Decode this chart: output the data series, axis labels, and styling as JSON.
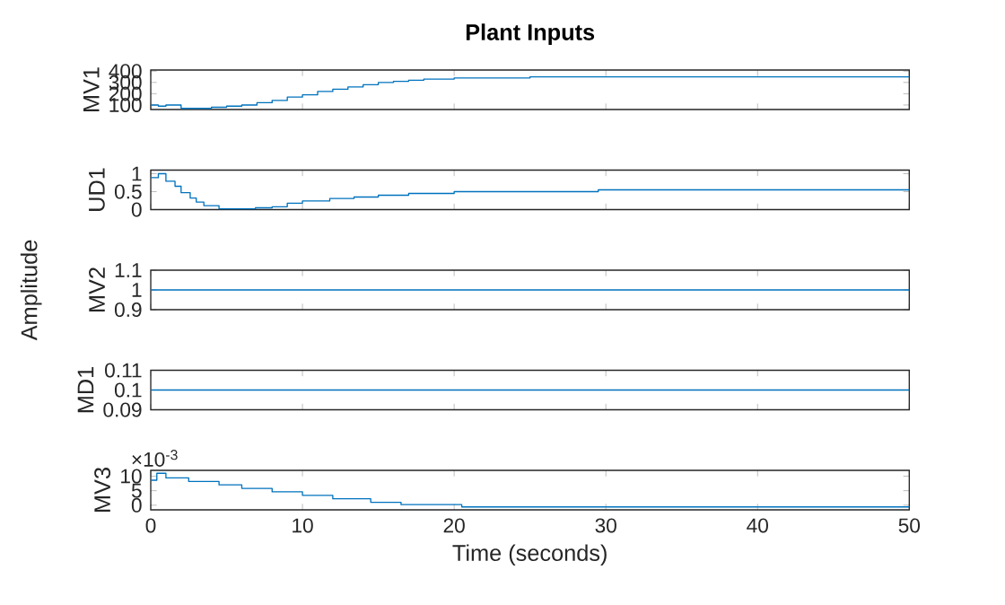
{
  "chart_data": [
    {
      "type": "step",
      "title": "Plant Inputs",
      "ylabel": "MV1",
      "color": "#0072bd",
      "tick_labels": "y",
      "x": [
        0,
        0.5,
        1,
        2,
        4,
        5,
        6,
        7,
        8,
        9,
        10,
        11,
        12,
        13,
        14,
        15,
        16,
        17,
        18,
        20,
        25,
        50
      ],
      "values": [
        100,
        90,
        100,
        70,
        80,
        90,
        100,
        120,
        140,
        170,
        190,
        220,
        240,
        260,
        280,
        300,
        310,
        320,
        330,
        340,
        350,
        350
      ],
      "xlim": [
        0,
        50
      ],
      "ylim": [
        60,
        410
      ],
      "xticks": [
        0,
        10,
        20,
        30,
        40,
        50
      ],
      "yticks": [
        100,
        200,
        300,
        400
      ]
    },
    {
      "type": "step",
      "ylabel": "UD1",
      "color": "#0072bd",
      "tick_labels": "y",
      "x": [
        0,
        0.5,
        1,
        1.6,
        2,
        2.6,
        3,
        3.5,
        4.5,
        6.9,
        8,
        9,
        10,
        11.8,
        13.4,
        15,
        17,
        20,
        29.5,
        50
      ],
      "values": [
        0.89,
        1.0,
        0.79,
        0.65,
        0.47,
        0.32,
        0.21,
        0.11,
        0.02,
        0.05,
        0.08,
        0.18,
        0.24,
        0.31,
        0.35,
        0.4,
        0.45,
        0.5,
        0.55,
        0.55
      ],
      "xlim": [
        0,
        50
      ],
      "ylim": [
        0,
        1.1
      ],
      "xticks": [
        0,
        10,
        20,
        30,
        40,
        50
      ],
      "yticks": [
        0,
        0.5,
        1
      ]
    },
    {
      "type": "step",
      "ylabel": "MV2",
      "color": "#0072bd",
      "tick_labels": "y",
      "annotations": [
        "Amplitude"
      ],
      "x": [
        0,
        50
      ],
      "values": [
        1,
        1
      ],
      "xlim": [
        0,
        50
      ],
      "ylim": [
        0.9,
        1.1
      ],
      "xticks": [
        0,
        10,
        20,
        30,
        40,
        50
      ],
      "yticks": [
        0.9,
        1,
        1.1
      ]
    },
    {
      "type": "step",
      "ylabel": "MD1",
      "color": "#0072bd",
      "tick_labels": "y",
      "x": [
        0,
        50
      ],
      "values": [
        0.1,
        0.1
      ],
      "xlim": [
        0,
        50
      ],
      "ylim": [
        0.09,
        0.11
      ],
      "xticks": [
        0,
        10,
        20,
        30,
        40,
        50
      ],
      "yticks": [
        0.09,
        0.1,
        0.11
      ]
    },
    {
      "type": "step",
      "ylabel": "MV3",
      "xlabel": "Time (seconds)",
      "color": "#0072bd",
      "annotations": [
        "×10$^{-3}$"
      ],
      "x": [
        0,
        0.4,
        1,
        2.5,
        4.5,
        6,
        8,
        10,
        12,
        14.5,
        16.5,
        20.5,
        50
      ],
      "values": [
        8.6,
        11,
        9.4,
        8.2,
        7,
        5.8,
        4.6,
        3.4,
        2.2,
        1,
        0.2,
        -0.6,
        -0.6
      ],
      "xlim": [
        0,
        50
      ],
      "ylim": [
        -1.6,
        12
      ],
      "xticks": [
        0,
        10,
        20,
        30,
        40,
        50
      ],
      "yticks": [
        0,
        5,
        10
      ]
    }
  ]
}
